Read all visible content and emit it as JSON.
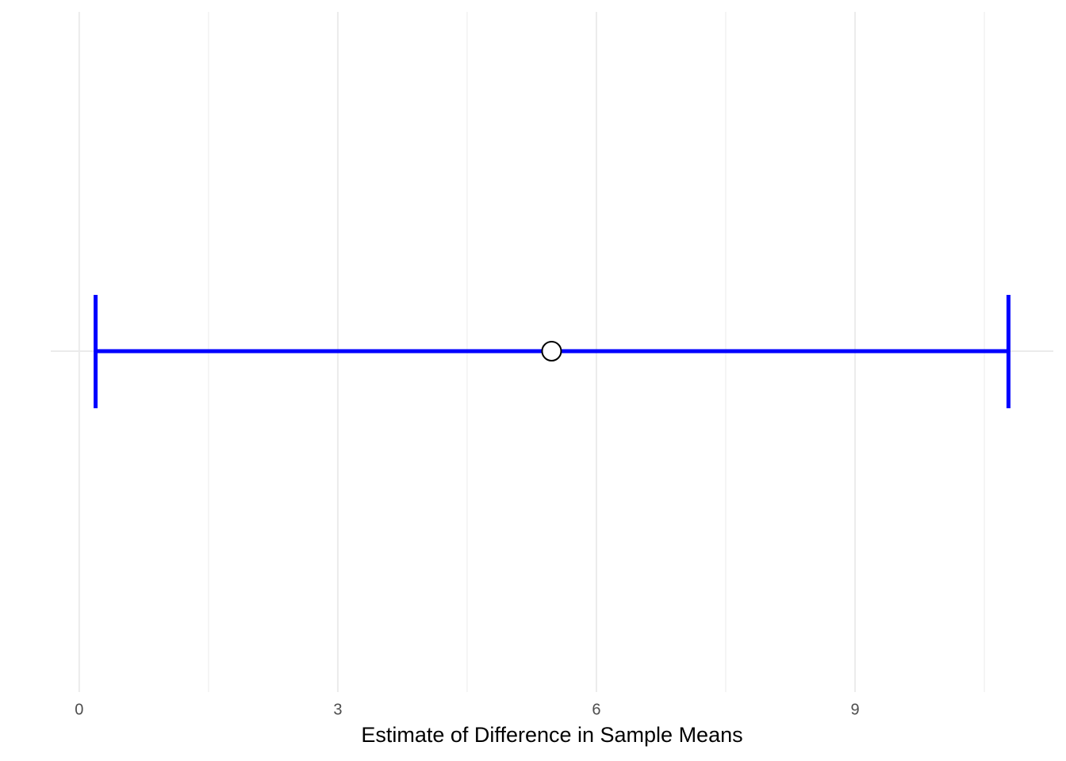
{
  "chart_data": {
    "type": "interval",
    "x_label": "Estimate of Difference in Sample Means",
    "estimate": 5.48,
    "lower": 0.19,
    "upper": 10.78,
    "color": "#0000ff",
    "xlim": [
      -0.33,
      11.3
    ],
    "xticks": [
      0,
      3,
      6,
      9
    ],
    "minor_xticks": [
      1.5,
      4.5,
      7.5,
      10.5
    ],
    "grid": true
  }
}
